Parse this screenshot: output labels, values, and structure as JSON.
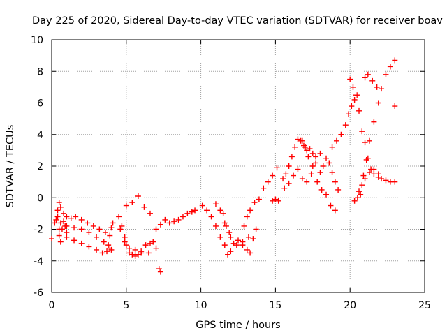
{
  "chart_data": {
    "type": "scatter",
    "title": "Day 225 of 2020, Sidereal Day-to-day VTEC variation (SDTVAR) for receiver boav",
    "xlabel": "GPS time / hours",
    "ylabel": "SDTVAR / TECUs",
    "xlim": [
      0,
      25
    ],
    "ylim": [
      -6,
      10
    ],
    "x_ticks": [
      0,
      5,
      10,
      15,
      20,
      25
    ],
    "y_ticks": [
      -6,
      -4,
      -2,
      0,
      2,
      4,
      6,
      8,
      10
    ],
    "x_tick_labels": [
      "0",
      "5",
      "10",
      "15",
      "20",
      "25"
    ],
    "y_tick_labels": [
      "-6",
      "-4",
      "-2",
      "0",
      "2",
      "4",
      "6",
      "8",
      "10"
    ],
    "grid": true,
    "marker": "+",
    "series": [
      {
        "name": "SDTVAR",
        "color": "#ff0000",
        "x": [
          0.0,
          0.2,
          0.4,
          0.5,
          0.6,
          0.8,
          1.0,
          1.3,
          1.6,
          2.0,
          2.4,
          2.8,
          3.2,
          3.6,
          3.9,
          4.0,
          4.1,
          0.3,
          0.6,
          1.0,
          1.5,
          2.0,
          2.5,
          3.0,
          3.5,
          3.8,
          4.0,
          0.5,
          1.0,
          1.5,
          2.0,
          2.5,
          3.0,
          3.4,
          3.7,
          3.9,
          0.4,
          0.5,
          0.6,
          0.7,
          0.8,
          0.9,
          1.0,
          4.5,
          4.7,
          4.9,
          5.0,
          5.2,
          5.4,
          5.6,
          5.8,
          6.0,
          6.3,
          6.6,
          6.8,
          7.0,
          7.3,
          7.6,
          7.9,
          8.2,
          8.5,
          8.8,
          9.1,
          9.4,
          9.6,
          4.6,
          4.9,
          5.2,
          5.6,
          6.0,
          6.5,
          7.0,
          5.0,
          5.4,
          5.8,
          6.2,
          6.6,
          7.2,
          7.3,
          10.1,
          10.4,
          10.7,
          11.0,
          11.3,
          11.6,
          11.8,
          12.0,
          12.2,
          12.5,
          12.8,
          13.1,
          13.3,
          13.5,
          13.7,
          11.5,
          11.7,
          12.0,
          12.4,
          12.8,
          13.2,
          11.0,
          11.3,
          11.6,
          11.9,
          12.9,
          13.1,
          13.3,
          13.6,
          13.9,
          14.2,
          14.5,
          14.8,
          15.1,
          14.8,
          15.0,
          15.2,
          15.5,
          15.7,
          15.9,
          16.1,
          16.3,
          16.5,
          16.7,
          16.9,
          17.1,
          17.3,
          17.5,
          17.7,
          15.6,
          15.9,
          16.2,
          16.5,
          16.8,
          17.1,
          17.4,
          17.7,
          18.0,
          16.8,
          17.0,
          17.2,
          17.5,
          17.8,
          18.1,
          18.4,
          18.7,
          19.0,
          18.0,
          18.2,
          18.4,
          18.6,
          18.8,
          19.0,
          19.2,
          18.8,
          19.1,
          19.4,
          19.7,
          19.9,
          20.1,
          20.3,
          20.5,
          20.0,
          20.2,
          20.4,
          20.6,
          20.8,
          21.0,
          21.2,
          21.4,
          21.6,
          21.9,
          22.1,
          22.4,
          22.7,
          23.0,
          20.3,
          20.5,
          20.7,
          20.9,
          21.1,
          21.3,
          21.6,
          21.9,
          20.6,
          20.8,
          21.0,
          21.3,
          21.6,
          21.9,
          21.0,
          21.2,
          21.5,
          21.8,
          22.1,
          22.4,
          22.7,
          23.0,
          23.0
        ],
        "y": [
          -2.6,
          -1.6,
          -0.8,
          -0.3,
          -0.6,
          -1.0,
          -1.2,
          -1.3,
          -1.2,
          -1.4,
          -1.6,
          -1.8,
          -2.0,
          -2.2,
          -2.4,
          -1.9,
          -1.6,
          -1.4,
          -1.6,
          -1.8,
          -1.9,
          -2.0,
          -2.2,
          -2.5,
          -2.8,
          -3.0,
          -3.3,
          -2.4,
          -2.5,
          -2.7,
          -2.9,
          -3.1,
          -3.3,
          -3.5,
          -3.4,
          -3.2,
          -1.2,
          -2.0,
          -2.8,
          -2.0,
          -1.5,
          -1.8,
          -2.2,
          -1.2,
          -1.8,
          -2.5,
          -3.0,
          -3.5,
          -3.6,
          -3.7,
          -3.6,
          -3.5,
          -3.0,
          -2.9,
          -2.8,
          -2.0,
          -1.7,
          -1.4,
          -1.6,
          -1.5,
          -1.4,
          -1.2,
          -1.0,
          -0.9,
          -0.8,
          -2.0,
          -2.8,
          -3.2,
          -3.3,
          -3.4,
          -3.5,
          -3.2,
          -0.5,
          -0.3,
          0.1,
          -0.6,
          -1.0,
          -4.5,
          -4.7,
          -0.5,
          -0.8,
          -1.2,
          -1.8,
          -2.5,
          -3.0,
          -3.6,
          -3.4,
          -2.9,
          -2.7,
          -3.0,
          -3.3,
          -3.5,
          -2.6,
          -2.0,
          -1.0,
          -1.8,
          -2.5,
          -3.0,
          -2.8,
          -2.5,
          -0.4,
          -0.8,
          -1.6,
          -2.2,
          -1.8,
          -1.2,
          -0.8,
          -0.3,
          -0.1,
          0.6,
          1.0,
          1.4,
          1.9,
          -0.2,
          -0.1,
          -0.2,
          1.2,
          1.5,
          2.0,
          2.6,
          3.2,
          3.7,
          3.6,
          3.3,
          3.0,
          3.1,
          2.8,
          2.6,
          0.6,
          0.9,
          1.4,
          1.8,
          1.2,
          1.0,
          1.5,
          2.2,
          2.8,
          3.6,
          3.2,
          2.6,
          2.0,
          1.0,
          0.5,
          0.2,
          -0.5,
          -0.8,
          1.6,
          2.0,
          2.5,
          2.2,
          1.6,
          1.0,
          0.5,
          3.2,
          3.6,
          4.0,
          4.6,
          5.3,
          5.8,
          6.2,
          6.5,
          7.5,
          7.0,
          6.5,
          5.5,
          4.2,
          3.5,
          2.5,
          1.8,
          1.5,
          1.3,
          1.2,
          1.1,
          1.0,
          1.0,
          -0.2,
          0.0,
          0.2,
          1.4,
          2.4,
          3.6,
          4.8,
          6.0,
          0.4,
          0.8,
          1.2,
          1.6,
          1.8,
          1.5,
          7.6,
          7.8,
          7.4,
          7.0,
          6.9,
          7.8,
          8.3,
          8.7,
          5.8
        ]
      }
    ]
  }
}
